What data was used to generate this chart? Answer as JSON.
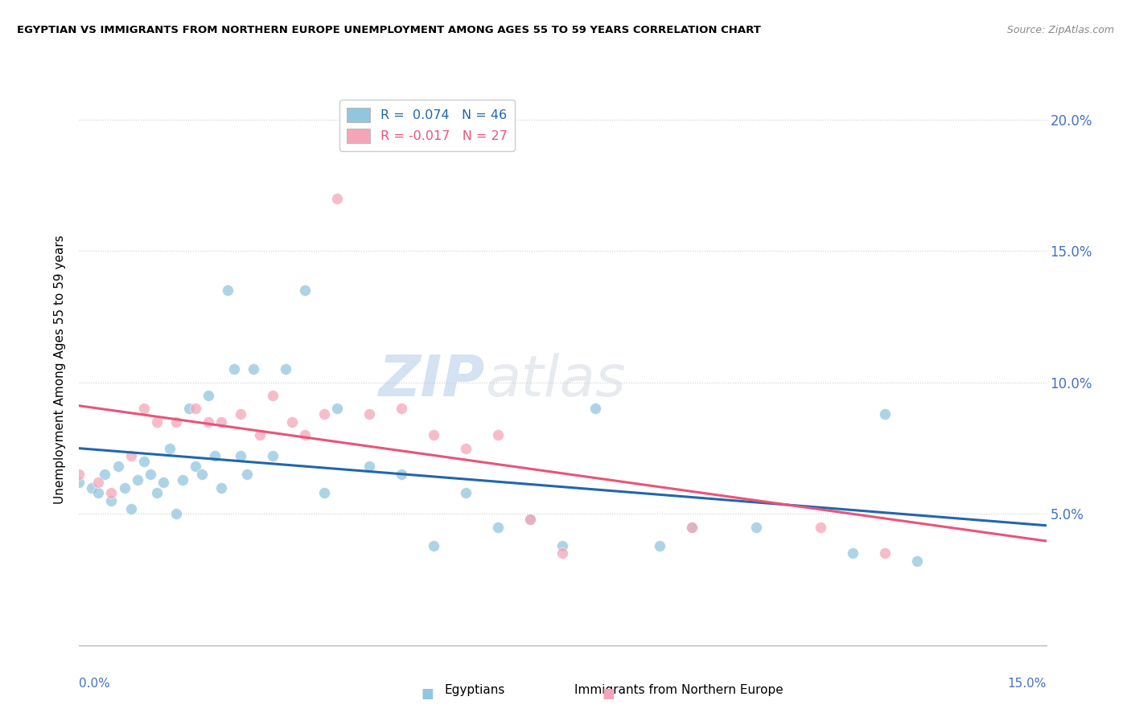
{
  "title": "EGYPTIAN VS IMMIGRANTS FROM NORTHERN EUROPE UNEMPLOYMENT AMONG AGES 55 TO 59 YEARS CORRELATION CHART",
  "source": "Source: ZipAtlas.com",
  "ylabel": "Unemployment Among Ages 55 to 59 years",
  "xlim": [
    0.0,
    15.0
  ],
  "ylim": [
    0.0,
    21.0
  ],
  "ytick_vals": [
    5.0,
    10.0,
    15.0,
    20.0
  ],
  "legend_r1": "R =  0.074",
  "legend_n1": "N = 46",
  "legend_r2": "R = -0.017",
  "legend_n2": "N = 27",
  "blue_color": "#92c5de",
  "pink_color": "#f4a6b8",
  "blue_line_color": "#2166ac",
  "pink_line_color": "#e8547a",
  "watermark_text": "ZIPatlas",
  "blue_scatter_x": [
    0.0,
    0.2,
    0.3,
    0.4,
    0.5,
    0.6,
    0.7,
    0.8,
    0.9,
    1.0,
    1.1,
    1.2,
    1.3,
    1.4,
    1.5,
    1.6,
    1.7,
    1.8,
    1.9,
    2.0,
    2.1,
    2.2,
    2.3,
    2.4,
    2.5,
    2.6,
    2.7,
    3.0,
    3.2,
    3.5,
    3.8,
    4.0,
    4.5,
    5.0,
    5.5,
    6.0,
    6.5,
    7.0,
    7.5,
    8.0,
    9.0,
    9.5,
    10.5,
    12.0,
    12.5,
    13.0
  ],
  "blue_scatter_y": [
    6.2,
    6.0,
    5.8,
    6.5,
    5.5,
    6.8,
    6.0,
    5.2,
    6.3,
    7.0,
    6.5,
    5.8,
    6.2,
    7.5,
    5.0,
    6.3,
    9.0,
    6.8,
    6.5,
    9.5,
    7.2,
    6.0,
    13.5,
    10.5,
    7.2,
    6.5,
    10.5,
    7.2,
    10.5,
    13.5,
    5.8,
    9.0,
    6.8,
    6.5,
    3.8,
    5.8,
    4.5,
    4.8,
    3.8,
    9.0,
    3.8,
    4.5,
    4.5,
    3.5,
    8.8,
    3.2
  ],
  "pink_scatter_x": [
    0.0,
    0.3,
    0.5,
    0.8,
    1.0,
    1.2,
    1.5,
    1.8,
    2.0,
    2.2,
    2.5,
    2.8,
    3.0,
    3.3,
    3.5,
    3.8,
    4.0,
    4.5,
    5.0,
    5.5,
    6.0,
    6.5,
    7.0,
    7.5,
    9.5,
    11.5,
    12.5
  ],
  "pink_scatter_y": [
    6.5,
    6.2,
    5.8,
    7.2,
    9.0,
    8.5,
    8.5,
    9.0,
    8.5,
    8.5,
    8.8,
    8.0,
    9.5,
    8.5,
    8.0,
    8.8,
    17.0,
    8.8,
    9.0,
    8.0,
    7.5,
    8.0,
    4.8,
    3.5,
    4.5,
    4.5,
    3.5
  ]
}
